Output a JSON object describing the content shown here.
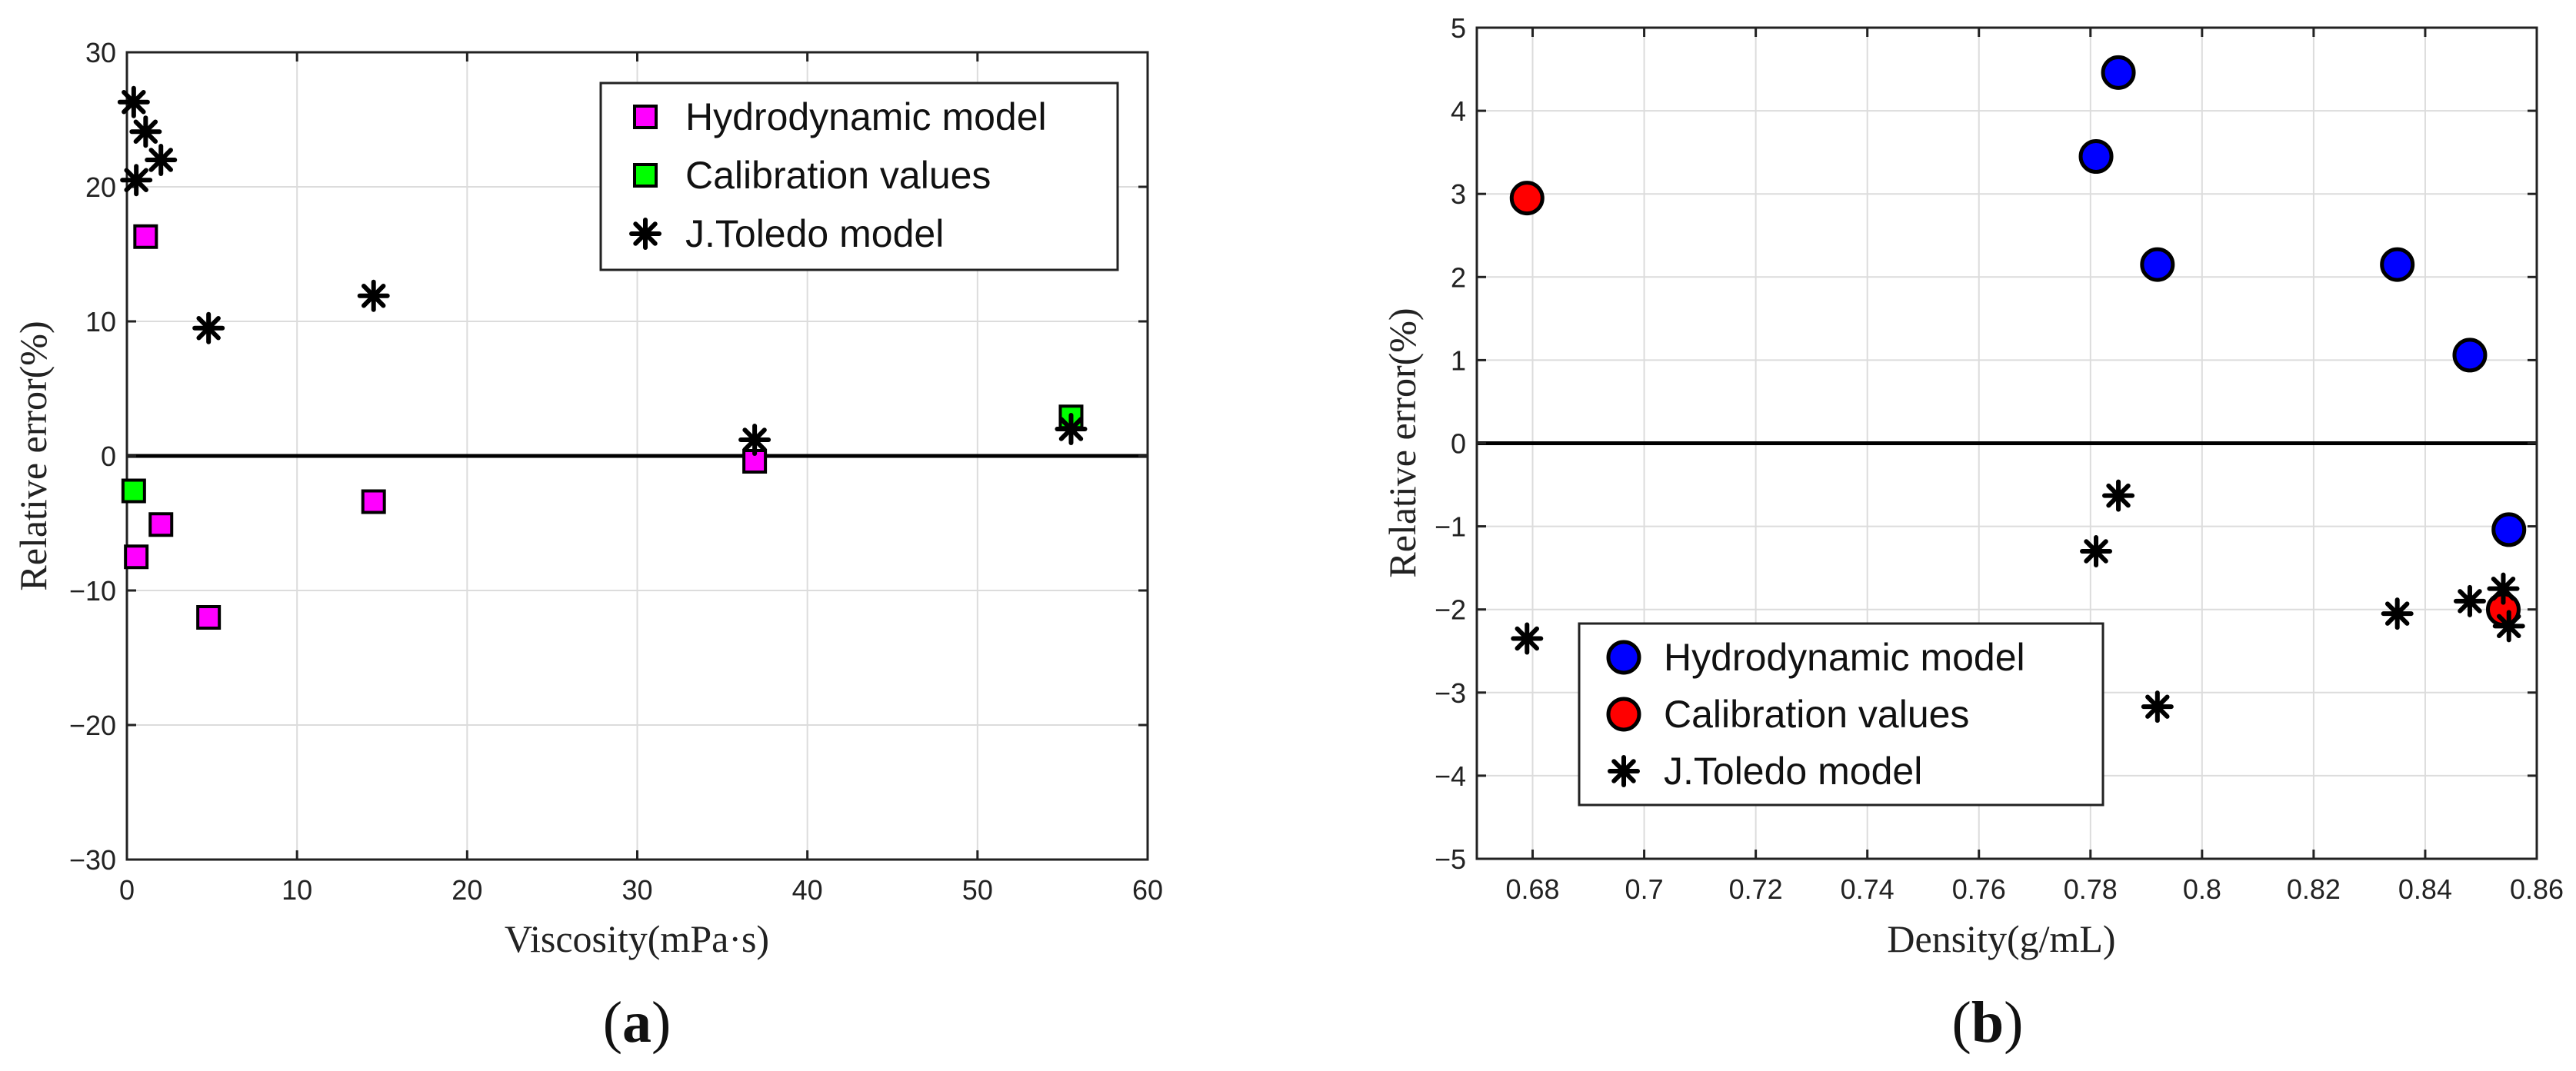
{
  "chart_data": [
    {
      "type": "scatter",
      "panel_label": "a",
      "xlabel": "Viscosity(mPa·s)",
      "ylabel": "Relative error(%)",
      "xlim": [
        0,
        60
      ],
      "ylim": [
        -30,
        30
      ],
      "xticks": [
        0,
        10,
        20,
        30,
        40,
        50,
        60
      ],
      "yticks": [
        -30,
        -20,
        -10,
        0,
        10,
        20,
        30
      ],
      "xtick_labels": [
        "0",
        "10",
        "20",
        "30",
        "40",
        "50",
        "60"
      ],
      "ytick_labels": [
        "−30",
        "−20",
        "−10",
        "0",
        "10",
        "20",
        "30"
      ],
      "grid": true,
      "zero_line": true,
      "legend_position": "top-right",
      "series": [
        {
          "name": "Hydrodynamic model",
          "marker": "square",
          "color": "#ff00ff",
          "points": [
            [
              0.55,
              -7.5
            ],
            [
              1.1,
              16.3
            ],
            [
              2.0,
              -5.1
            ],
            [
              4.8,
              -12.0
            ],
            [
              14.5,
              -3.4
            ],
            [
              36.9,
              -0.4
            ]
          ]
        },
        {
          "name": "Calibration values",
          "marker": "square",
          "color": "#00ff00",
          "points": [
            [
              0.4,
              -2.6
            ],
            [
              55.5,
              2.9
            ]
          ]
        },
        {
          "name": "J.Toledo model",
          "marker": "asterisk",
          "color": "#000000",
          "points": [
            [
              0.4,
              26.3
            ],
            [
              1.1,
              24.1
            ],
            [
              0.55,
              20.5
            ],
            [
              2.0,
              22.0
            ],
            [
              4.8,
              9.5
            ],
            [
              14.5,
              11.9
            ],
            [
              36.9,
              1.2
            ],
            [
              55.5,
              2.0
            ]
          ]
        }
      ]
    },
    {
      "type": "scatter",
      "panel_label": "b",
      "xlabel": "Density(g/mL)",
      "ylabel": "Relative error(%)",
      "xlim": [
        0.67,
        0.86
      ],
      "ylim": [
        -5,
        5
      ],
      "xticks": [
        0.68,
        0.7,
        0.72,
        0.74,
        0.76,
        0.78,
        0.8,
        0.82,
        0.84,
        0.86
      ],
      "yticks": [
        -5,
        -4,
        -3,
        -2,
        -1,
        0,
        1,
        2,
        3,
        4,
        5
      ],
      "xtick_labels": [
        "0.68",
        "0.7",
        "0.72",
        "0.74",
        "0.76",
        "0.78",
        "0.8",
        "0.82",
        "0.84",
        "0.86"
      ],
      "ytick_labels": [
        "−5",
        "−4",
        "−3",
        "−2",
        "−1",
        "0",
        "1",
        "2",
        "3",
        "4",
        "5"
      ],
      "grid": true,
      "zero_line": true,
      "legend_position": "bottom-left",
      "series": [
        {
          "name": "Hydrodynamic model",
          "marker": "circle",
          "color": "#0000ff",
          "points": [
            [
              0.781,
              3.45
            ],
            [
              0.785,
              4.46
            ],
            [
              0.792,
              2.15
            ],
            [
              0.835,
              2.15
            ],
            [
              0.848,
              1.06
            ],
            [
              0.855,
              -1.04
            ]
          ]
        },
        {
          "name": "Calibration values",
          "marker": "circle",
          "color": "#ff0000",
          "points": [
            [
              0.679,
              2.95
            ],
            [
              0.854,
              -2.0
            ]
          ]
        },
        {
          "name": "J.Toledo model",
          "marker": "asterisk",
          "color": "#000000",
          "points": [
            [
              0.679,
              -2.35
            ],
            [
              0.781,
              -1.3
            ],
            [
              0.785,
              -0.63
            ],
            [
              0.792,
              -3.17
            ],
            [
              0.835,
              -2.05
            ],
            [
              0.848,
              -1.9
            ],
            [
              0.854,
              -1.75
            ],
            [
              0.855,
              -2.2
            ]
          ]
        }
      ]
    }
  ]
}
